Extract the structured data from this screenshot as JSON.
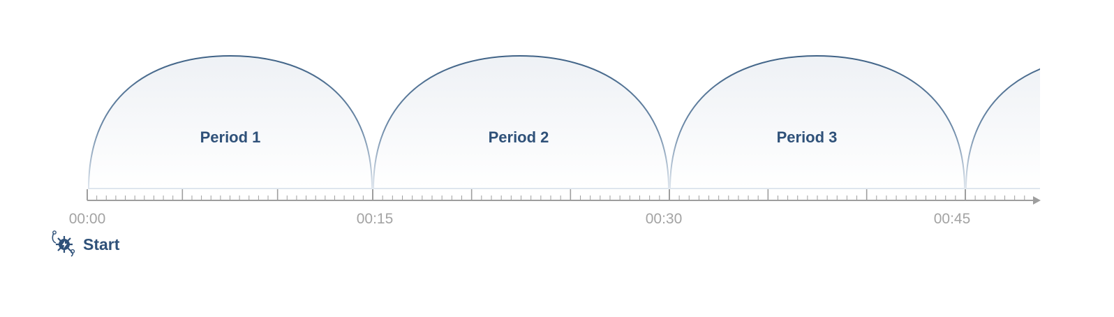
{
  "timeline": {
    "periods": [
      {
        "label": "Period 1"
      },
      {
        "label": "Period 2"
      },
      {
        "label": "Period 3"
      },
      {
        "label": ""
      }
    ],
    "time_labels": [
      "00:00",
      "00:15",
      "00:30",
      "00:45"
    ],
    "start": {
      "label": "Start",
      "icon": "virus-bug-icon"
    },
    "colors": {
      "arc_stroke": "#3f6286",
      "arc_fill_top": "#eef1f5",
      "axis": "#9e9e9e",
      "period_text": "#2f5179",
      "time_text": "#a3a3a3",
      "start_text": "#2f5179"
    }
  }
}
